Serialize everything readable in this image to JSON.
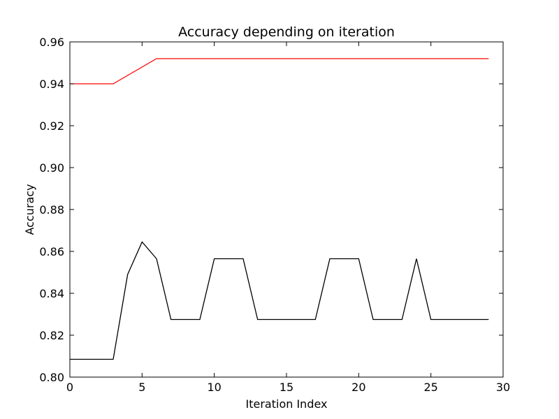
{
  "chart_data": {
    "type": "line",
    "title": "Accuracy depending on iteration",
    "xlabel": "Iteration Index",
    "ylabel": "Accuracy",
    "xlim": [
      0,
      30
    ],
    "ylim": [
      0.8,
      0.96
    ],
    "xticks": [
      0,
      5,
      10,
      15,
      20,
      25,
      30
    ],
    "xtick_labels": [
      "0",
      "5",
      "10",
      "15",
      "20",
      "25",
      "30"
    ],
    "yticks": [
      0.8,
      0.82,
      0.84,
      0.86,
      0.88,
      0.9,
      0.92,
      0.94,
      0.96
    ],
    "ytick_labels": [
      "0.80",
      "0.82",
      "0.84",
      "0.86",
      "0.88",
      "0.90",
      "0.92",
      "0.94",
      "0.96"
    ],
    "grid": false,
    "legend": false,
    "x": [
      0,
      1,
      2,
      3,
      4,
      5,
      6,
      7,
      8,
      9,
      10,
      11,
      12,
      13,
      14,
      15,
      16,
      17,
      18,
      19,
      20,
      21,
      22,
      23,
      24,
      25,
      26,
      27,
      28,
      29
    ],
    "series": [
      {
        "color": "#ff0000",
        "values": [
          0.94,
          0.94,
          0.94,
          0.94,
          0.944,
          0.948,
          0.952,
          0.952,
          0.952,
          0.952,
          0.952,
          0.952,
          0.952,
          0.952,
          0.952,
          0.952,
          0.952,
          0.952,
          0.952,
          0.952,
          0.952,
          0.952,
          0.952,
          0.952,
          0.952,
          0.952,
          0.952,
          0.952,
          0.952,
          0.952
        ]
      },
      {
        "color": "#000000",
        "values": [
          0.8085,
          0.8085,
          0.8085,
          0.8085,
          0.849,
          0.8645,
          0.8565,
          0.8275,
          0.8275,
          0.8275,
          0.8565,
          0.8565,
          0.8565,
          0.8275,
          0.8275,
          0.8275,
          0.8275,
          0.8275,
          0.8565,
          0.8565,
          0.8565,
          0.8275,
          0.8275,
          0.8275,
          0.8565,
          0.8275,
          0.8275,
          0.8275,
          0.8275,
          0.8275
        ]
      }
    ]
  }
}
